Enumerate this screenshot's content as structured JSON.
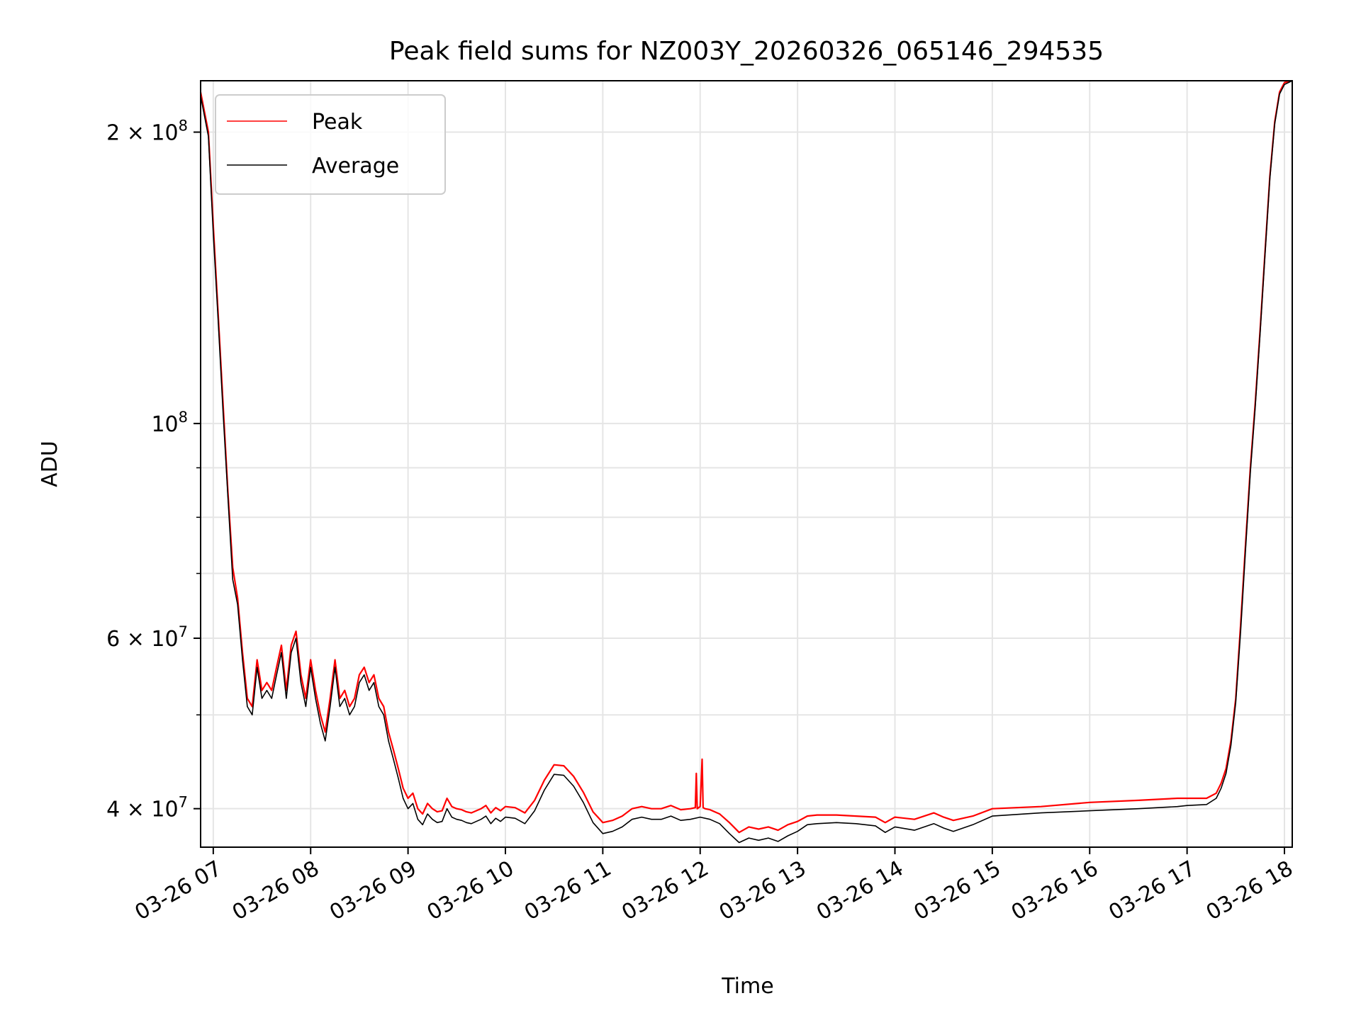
{
  "chart_data": {
    "type": "line",
    "title": "Peak field sums for NZ003Y_20260326_065146_294535",
    "xlabel": "Time",
    "ylabel": "ADU",
    "yscale": "log",
    "xlim": [
      6.87,
      18.08
    ],
    "ylim": [
      36500000,
      226000000
    ],
    "grid": true,
    "legend_position": "top-left",
    "x_ticks": [
      {
        "value": 7,
        "label": "03-26 07"
      },
      {
        "value": 8,
        "label": "03-26 08"
      },
      {
        "value": 9,
        "label": "03-26 09"
      },
      {
        "value": 10,
        "label": "03-26 10"
      },
      {
        "value": 11,
        "label": "03-26 11"
      },
      {
        "value": 12,
        "label": "03-26 12"
      },
      {
        "value": 13,
        "label": "03-26 13"
      },
      {
        "value": 14,
        "label": "03-26 14"
      },
      {
        "value": 15,
        "label": "03-26 15"
      },
      {
        "value": 16,
        "label": "03-26 16"
      },
      {
        "value": 17,
        "label": "03-26 17"
      },
      {
        "value": 18,
        "label": "03-26 18"
      }
    ],
    "y_ticks": [
      {
        "value": 200000000,
        "mantissa": "2",
        "exponent": "8",
        "times": true
      },
      {
        "value": 100000000,
        "mantissa": "",
        "exponent": "8",
        "times": false
      },
      {
        "value": 60000000,
        "mantissa": "6",
        "exponent": "7",
        "times": true
      },
      {
        "value": 40000000,
        "mantissa": "4",
        "exponent": "7",
        "times": true
      }
    ],
    "y_minor_ticks": [
      50000000,
      70000000,
      80000000,
      90000000
    ],
    "series": [
      {
        "name": "Peak",
        "color": "#ff0000",
        "x": [
          6.87,
          6.95,
          7.0,
          7.05,
          7.1,
          7.15,
          7.2,
          7.25,
          7.3,
          7.35,
          7.4,
          7.45,
          7.5,
          7.55,
          7.6,
          7.65,
          7.7,
          7.75,
          7.8,
          7.85,
          7.9,
          7.95,
          8.0,
          8.05,
          8.1,
          8.15,
          8.2,
          8.25,
          8.3,
          8.35,
          8.4,
          8.45,
          8.5,
          8.55,
          8.6,
          8.65,
          8.7,
          8.75,
          8.8,
          8.85,
          8.9,
          8.95,
          9.0,
          9.05,
          9.1,
          9.15,
          9.2,
          9.25,
          9.3,
          9.35,
          9.4,
          9.45,
          9.5,
          9.55,
          9.6,
          9.65,
          9.7,
          9.75,
          9.8,
          9.85,
          9.9,
          9.95,
          10.0,
          10.1,
          10.2,
          10.3,
          10.4,
          10.5,
          10.6,
          10.7,
          10.8,
          10.9,
          11.0,
          11.1,
          11.2,
          11.3,
          11.4,
          11.5,
          11.6,
          11.7,
          11.8,
          11.9,
          11.95,
          11.96,
          11.97,
          12.0,
          12.02,
          12.03,
          12.05,
          12.1,
          12.2,
          12.3,
          12.4,
          12.5,
          12.6,
          12.7,
          12.8,
          12.9,
          13.0,
          13.1,
          13.2,
          13.4,
          13.6,
          13.8,
          13.9,
          14.0,
          14.2,
          14.4,
          14.5,
          14.6,
          14.8,
          15.0,
          15.5,
          16.0,
          16.5,
          16.9,
          17.0,
          17.2,
          17.3,
          17.35,
          17.4,
          17.45,
          17.5,
          17.55,
          17.6,
          17.65,
          17.7,
          17.75,
          17.8,
          17.85,
          17.9,
          17.95,
          18.0,
          18.08
        ],
        "y": [
          220000000,
          200000000,
          160000000,
          130000000,
          105000000,
          85000000,
          71000000,
          66000000,
          58000000,
          52000000,
          51000000,
          57000000,
          53000000,
          54000000,
          53000000,
          56000000,
          59000000,
          53000000,
          59000000,
          61000000,
          55000000,
          52000000,
          57000000,
          53000000,
          50000000,
          48000000,
          52000000,
          57000000,
          52000000,
          53000000,
          51000000,
          52000000,
          55000000,
          56000000,
          54000000,
          55000000,
          52000000,
          51000000,
          48000000,
          46000000,
          44000000,
          42000000,
          41000000,
          41500000,
          40000000,
          39500000,
          40500000,
          40000000,
          39700000,
          39800000,
          41000000,
          40200000,
          40000000,
          39900000,
          39700000,
          39600000,
          39800000,
          40000000,
          40300000,
          39600000,
          40100000,
          39800000,
          40200000,
          40100000,
          39600000,
          40800000,
          42800000,
          44400000,
          44300000,
          43200000,
          41600000,
          39700000,
          38700000,
          38900000,
          39300000,
          40000000,
          40200000,
          40000000,
          40000000,
          40300000,
          39900000,
          40000000,
          40100000,
          43500000,
          40000000,
          40200000,
          45000000,
          40100000,
          40000000,
          39900000,
          39500000,
          38700000,
          37800000,
          38300000,
          38100000,
          38300000,
          38000000,
          38500000,
          38800000,
          39300000,
          39400000,
          39400000,
          39300000,
          39200000,
          38700000,
          39200000,
          39000000,
          39600000,
          39200000,
          38900000,
          39300000,
          40000000,
          40200000,
          40600000,
          40800000,
          41000000,
          41000000,
          41000000,
          41500000,
          42500000,
          44000000,
          47000000,
          52000000,
          62000000,
          75000000,
          90000000,
          105000000,
          125000000,
          150000000,
          180000000,
          205000000,
          220000000,
          225000000,
          226000000
        ]
      },
      {
        "name": "Average",
        "color": "#000000",
        "x": [
          6.87,
          6.95,
          7.0,
          7.05,
          7.1,
          7.15,
          7.2,
          7.25,
          7.3,
          7.35,
          7.4,
          7.45,
          7.5,
          7.55,
          7.6,
          7.65,
          7.7,
          7.75,
          7.8,
          7.85,
          7.9,
          7.95,
          8.0,
          8.05,
          8.1,
          8.15,
          8.2,
          8.25,
          8.3,
          8.35,
          8.4,
          8.45,
          8.5,
          8.55,
          8.6,
          8.65,
          8.7,
          8.75,
          8.8,
          8.85,
          8.9,
          8.95,
          9.0,
          9.05,
          9.1,
          9.15,
          9.2,
          9.25,
          9.3,
          9.35,
          9.4,
          9.45,
          9.5,
          9.55,
          9.6,
          9.65,
          9.7,
          9.75,
          9.8,
          9.85,
          9.9,
          9.95,
          10.0,
          10.1,
          10.2,
          10.3,
          10.4,
          10.5,
          10.6,
          10.7,
          10.8,
          10.9,
          11.0,
          11.1,
          11.2,
          11.3,
          11.4,
          11.5,
          11.6,
          11.7,
          11.8,
          11.9,
          12.0,
          12.1,
          12.2,
          12.3,
          12.4,
          12.5,
          12.6,
          12.7,
          12.8,
          12.9,
          13.0,
          13.1,
          13.2,
          13.4,
          13.6,
          13.8,
          13.9,
          14.0,
          14.2,
          14.4,
          14.5,
          14.6,
          14.8,
          15.0,
          15.5,
          16.0,
          16.5,
          16.9,
          17.0,
          17.2,
          17.3,
          17.35,
          17.4,
          17.45,
          17.5,
          17.55,
          17.6,
          17.65,
          17.7,
          17.75,
          17.8,
          17.85,
          17.9,
          17.95,
          18.0,
          18.08
        ],
        "y": [
          218000000,
          198000000,
          157000000,
          128000000,
          103000000,
          84000000,
          69000000,
          65000000,
          57000000,
          51000000,
          50000000,
          56000000,
          52000000,
          53000000,
          52000000,
          55000000,
          58000000,
          52000000,
          58000000,
          60000000,
          54000000,
          51000000,
          56000000,
          52000000,
          49000000,
          47000000,
          51000000,
          56000000,
          51000000,
          52000000,
          50000000,
          51000000,
          54000000,
          55000000,
          53000000,
          54000000,
          51000000,
          50000000,
          47000000,
          45000000,
          43000000,
          41000000,
          40000000,
          40500000,
          39000000,
          38500000,
          39500000,
          39000000,
          38700000,
          38800000,
          40000000,
          39200000,
          39000000,
          38900000,
          38700000,
          38600000,
          38800000,
          39000000,
          39300000,
          38600000,
          39100000,
          38800000,
          39200000,
          39100000,
          38600000,
          39800000,
          41800000,
          43400000,
          43300000,
          42200000,
          40600000,
          38700000,
          37700000,
          37900000,
          38300000,
          39000000,
          39200000,
          39000000,
          39000000,
          39300000,
          38900000,
          39000000,
          39200000,
          39000000,
          38600000,
          37700000,
          36900000,
          37300000,
          37100000,
          37300000,
          37000000,
          37500000,
          37900000,
          38500000,
          38600000,
          38700000,
          38600000,
          38400000,
          37800000,
          38300000,
          38000000,
          38600000,
          38200000,
          37900000,
          38500000,
          39300000,
          39600000,
          39800000,
          40000000,
          40200000,
          40300000,
          40400000,
          41000000,
          42000000,
          43500000,
          46500000,
          51500000,
          61000000,
          74000000,
          89000000,
          104000000,
          124000000,
          149000000,
          179000000,
          204000000,
          219000000,
          224000000,
          226000000
        ]
      }
    ]
  }
}
